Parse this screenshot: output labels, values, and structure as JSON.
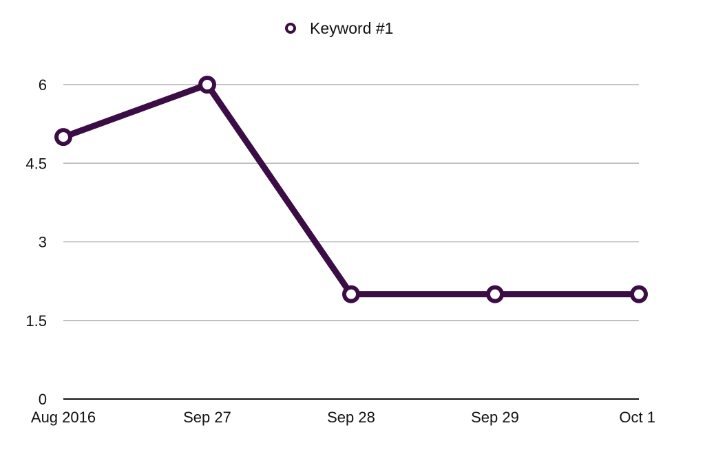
{
  "chart_data": {
    "type": "line",
    "categories": [
      "Aug 2016",
      "Sep 27",
      "Sep 28",
      "Sep 29",
      "Oct 1"
    ],
    "series": [
      {
        "name": "Keyword #1",
        "values": [
          5,
          6,
          2,
          2,
          2
        ],
        "color": "#3b0d45"
      }
    ],
    "ylim": [
      0,
      6
    ],
    "yticks": [
      "0",
      "1.5",
      "3",
      "4.5",
      "6"
    ],
    "grid": true,
    "legend_position": "top-center"
  }
}
